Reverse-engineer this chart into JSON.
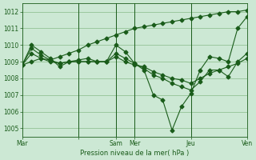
{
  "xlabel": "Pression niveau de la mer( hPa )",
  "bg_color": "#cce8d4",
  "line_color": "#1a5c1a",
  "grid_color": "#88bb88",
  "ylim": [
    1004.5,
    1012.5
  ],
  "xlim": [
    0,
    24
  ],
  "day_ticks": [
    0,
    6,
    10,
    12,
    18,
    24
  ],
  "day_labels": [
    "Mar",
    "",
    "Sam",
    "Mer",
    "Jeu",
    "Ven"
  ],
  "vlines": [
    6,
    10,
    12,
    18,
    24
  ],
  "series": [
    {
      "x": [
        0,
        1,
        2,
        3,
        4,
        5,
        6,
        7,
        8,
        9,
        10,
        11,
        12,
        13,
        14,
        15,
        16,
        17,
        18,
        19,
        20,
        21,
        22,
        23,
        24
      ],
      "y": [
        1008.8,
        1009.0,
        1009.2,
        1009.1,
        1009.3,
        1009.5,
        1009.7,
        1010.0,
        1010.2,
        1010.4,
        1010.6,
        1010.8,
        1011.0,
        1011.1,
        1011.2,
        1011.3,
        1011.4,
        1011.5,
        1011.6,
        1011.7,
        1011.8,
        1011.9,
        1012.0,
        1012.0,
        1012.1
      ]
    },
    {
      "x": [
        0,
        1,
        2,
        3,
        4,
        5,
        6,
        7,
        8,
        9,
        10,
        11,
        12,
        13,
        14,
        15,
        16,
        17,
        18,
        19,
        20,
        21,
        22,
        23,
        24
      ],
      "y": [
        1008.8,
        1010.0,
        1009.6,
        1009.2,
        1008.7,
        1009.0,
        1009.1,
        1009.2,
        1009.0,
        1009.0,
        1010.0,
        1009.6,
        1008.9,
        1008.5,
        1007.0,
        1006.7,
        1004.9,
        1006.3,
        1007.1,
        1008.5,
        1009.3,
        1009.2,
        1009.0,
        1011.0,
        1011.7
      ]
    },
    {
      "x": [
        0,
        1,
        2,
        3,
        4,
        5,
        6,
        7,
        8,
        9,
        10,
        11,
        12,
        13,
        14,
        15,
        16,
        17,
        18,
        19,
        20,
        21,
        22,
        23,
        24
      ],
      "y": [
        1008.8,
        1009.8,
        1009.4,
        1009.1,
        1008.9,
        1009.0,
        1009.0,
        1009.0,
        1009.0,
        1009.0,
        1009.5,
        1009.2,
        1008.9,
        1008.6,
        1008.2,
        1008.0,
        1007.7,
        1007.5,
        1007.3,
        1007.8,
        1008.5,
        1008.5,
        1008.1,
        1009.0,
        1009.5
      ]
    },
    {
      "x": [
        0,
        1,
        2,
        3,
        4,
        5,
        6,
        7,
        8,
        9,
        10,
        11,
        12,
        13,
        14,
        15,
        16,
        17,
        18,
        19,
        20,
        21,
        22,
        23,
        24
      ],
      "y": [
        1008.8,
        1009.5,
        1009.2,
        1009.0,
        1008.9,
        1009.0,
        1009.0,
        1009.0,
        1009.0,
        1009.0,
        1009.3,
        1009.0,
        1008.8,
        1008.7,
        1008.4,
        1008.2,
        1008.0,
        1007.9,
        1007.7,
        1008.0,
        1008.3,
        1008.5,
        1008.7,
        1008.9,
        1009.2
      ]
    }
  ]
}
